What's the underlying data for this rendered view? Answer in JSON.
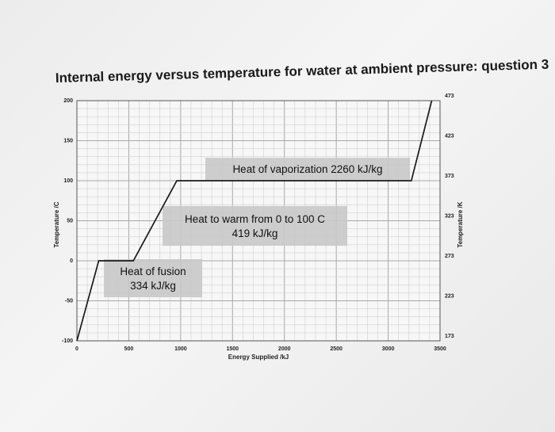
{
  "chart_data": {
    "type": "line",
    "title": "Internal energy versus temperature for water at ambient pressure: question 3",
    "xlabel": "Energy Supplied /kJ",
    "ylabel": "Temperature /C",
    "y2label": "Temperature /K",
    "xlim": [
      0,
      3500
    ],
    "ylim": [
      -100,
      200
    ],
    "x_ticks": [
      "0",
      "500",
      "1000",
      "1500",
      "2000",
      "2500",
      "3000",
      "3500"
    ],
    "y_ticks": [
      "-100",
      "-50",
      "0",
      "50",
      "100",
      "150",
      "200"
    ],
    "y2_ticks": [
      "173",
      "223",
      "273",
      "323",
      "373",
      "423",
      "473"
    ],
    "grid": true,
    "series": [
      {
        "x": [
          0,
          210,
          544,
          963,
          3223,
          3420
        ],
        "y": [
          -100,
          0,
          0,
          100,
          100,
          200
        ]
      }
    ],
    "annotations": [
      {
        "lines": [
          "Heat of fusion",
          "334 kJ/kg"
        ]
      },
      {
        "lines": [
          "Heat to warm from 0 to 100 C",
          "419 kJ/kg"
        ]
      },
      {
        "lines": [
          "Heat of vaporization 2260 kJ/kg"
        ]
      }
    ]
  }
}
